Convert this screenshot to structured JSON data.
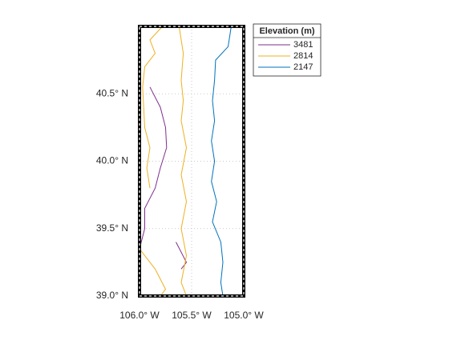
{
  "chart_data": {
    "type": "contour",
    "xlim": [
      -106,
      -105
    ],
    "ylim": [
      39,
      41
    ],
    "xticks": [
      {
        "value": -106,
        "label": "106.0° W"
      },
      {
        "value": -105.5,
        "label": "105.5° W"
      },
      {
        "value": -105,
        "label": "105.0° W"
      }
    ],
    "yticks": [
      {
        "value": 39,
        "label": "39.0° N"
      },
      {
        "value": 39.5,
        "label": "39.5° N"
      },
      {
        "value": 40,
        "label": "40.0° N"
      },
      {
        "value": 40.5,
        "label": "40.5° N"
      }
    ],
    "grid": true,
    "legend_title": "Elevation (m)",
    "legend": "northeast-outside",
    "series": [
      {
        "name": "3481",
        "color": "#7e2f8e",
        "x": [
          -105.9,
          -105.8,
          -105.75,
          -105.74,
          -105.8,
          -105.85,
          -105.95,
          -105.95,
          -106.0,
          null,
          -105.65,
          -105.55,
          -105.6
        ],
        "y": [
          40.55,
          40.4,
          40.25,
          40.1,
          39.95,
          39.8,
          39.65,
          39.5,
          39.35,
          null,
          39.4,
          39.25,
          39.2
        ]
      },
      {
        "name": "2814",
        "color": "#edb120",
        "x": [
          -105.78,
          -105.9,
          -105.85,
          -105.95,
          -105.97,
          -105.96,
          -105.95,
          -105.9,
          -105.93,
          -105.9,
          null,
          -105.62,
          -105.58,
          -105.6,
          -105.58,
          -105.6,
          -105.55,
          -105.6,
          -105.55,
          -105.6,
          -105.55,
          -105.6,
          -105.55,
          null,
          -106.0,
          -105.85,
          -105.75,
          -105.8
        ],
        "y": [
          41.0,
          40.9,
          40.8,
          40.7,
          40.55,
          40.4,
          40.25,
          40.1,
          39.95,
          39.8,
          null,
          41.0,
          40.8,
          40.6,
          40.45,
          40.3,
          40.1,
          39.9,
          39.7,
          39.5,
          39.3,
          39.1,
          39.0,
          null,
          39.35,
          39.2,
          39.05,
          39.0
        ]
      },
      {
        "name": "2147",
        "color": "#0072bd",
        "x": [
          -105.12,
          -105.15,
          -105.27,
          -105.28,
          -105.3,
          -105.28,
          -105.31,
          -105.28,
          -105.31,
          -105.26,
          -105.3,
          -105.22,
          -105.2,
          -105.22,
          -105.2
        ],
        "y": [
          41.0,
          40.85,
          40.75,
          40.6,
          40.45,
          40.3,
          40.15,
          40.0,
          39.85,
          39.7,
          39.55,
          39.4,
          39.25,
          39.1,
          39.0
        ]
      }
    ]
  }
}
